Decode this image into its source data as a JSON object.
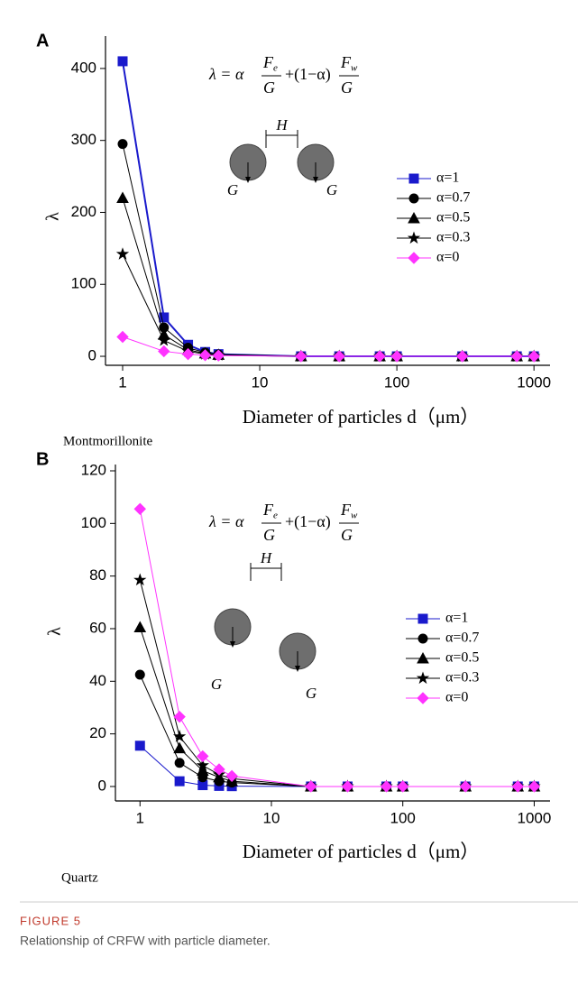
{
  "chart_data": [
    {
      "type": "line",
      "panel_label": "A",
      "xscale": "log",
      "formula": [
        "λ = α",
        "F",
        "e",
        "G",
        "+(1−α)",
        "F",
        "w",
        "G"
      ],
      "diagram_labels": [
        "H",
        "G",
        "G"
      ],
      "ylabel": "λ",
      "xlabel": "Diameter of particles d（μm）",
      "caption": "Montmorillonite",
      "x": [
        1,
        2,
        3,
        4,
        5,
        20,
        38,
        75,
        100,
        300,
        750,
        1000
      ],
      "xlim": [
        0.75,
        1310
      ],
      "xticks": [
        1,
        10,
        100,
        1000
      ],
      "ylim": [
        -12.5,
        445
      ],
      "yticks": [
        0,
        100,
        200,
        300,
        400
      ],
      "series": [
        {
          "name": "α=1",
          "color": "#1a1acc",
          "marker": "square",
          "values": [
            410,
            54,
            16,
            6,
            3,
            0,
            0,
            0,
            0,
            0,
            0,
            0
          ]
        },
        {
          "name": "α=0.7",
          "color": "#000000",
          "marker": "circle",
          "values": [
            295,
            40,
            12,
            5,
            2.5,
            0,
            0,
            0,
            0,
            0,
            0,
            0
          ]
        },
        {
          "name": "α=0.5",
          "color": "#000000",
          "marker": "triangle",
          "values": [
            220,
            30,
            9,
            4,
            2,
            0,
            0,
            0,
            0,
            0,
            0,
            0
          ]
        },
        {
          "name": "α=0.3",
          "color": "#000000",
          "marker": "star",
          "values": [
            142,
            22,
            7,
            3,
            1.5,
            0,
            0,
            0,
            0,
            0,
            0,
            0
          ]
        },
        {
          "name": "α=0",
          "color": "#ff33ff",
          "marker": "diamond",
          "values": [
            27,
            7,
            3,
            1.5,
            1,
            0,
            0,
            0,
            0,
            0,
            0,
            0
          ]
        }
      ]
    },
    {
      "type": "line",
      "panel_label": "B",
      "xscale": "log",
      "formula": [
        "λ = α",
        "F",
        "e",
        "G",
        "+(1−α)",
        "F",
        "w",
        "G"
      ],
      "diagram_labels": [
        "H",
        "G",
        "G"
      ],
      "ylabel": "λ",
      "xlabel": "Diameter of particles d（μm）",
      "caption": "Quartz",
      "x": [
        1,
        2,
        3,
        4,
        5,
        20,
        38,
        75,
        100,
        300,
        750,
        1000
      ],
      "xlim": [
        0.65,
        1320
      ],
      "xticks": [
        1,
        10,
        100,
        1000
      ],
      "ylim": [
        -5.5,
        122.4
      ],
      "yticks": [
        0,
        20,
        40,
        60,
        80,
        100,
        120
      ],
      "series": [
        {
          "name": "α=1",
          "color": "#1a1acc",
          "marker": "square",
          "values": [
            15.5,
            2,
            0.5,
            0.2,
            0.1,
            0,
            0,
            0,
            0,
            0,
            0,
            0
          ]
        },
        {
          "name": "α=0.7",
          "color": "#000000",
          "marker": "circle",
          "values": [
            42.5,
            9,
            3.5,
            2,
            1.5,
            0,
            0,
            0,
            0,
            0,
            0,
            0
          ]
        },
        {
          "name": "α=0.5",
          "color": "#000000",
          "marker": "triangle",
          "values": [
            60.5,
            14.5,
            6,
            3.5,
            2,
            0,
            0,
            0,
            0,
            0,
            0,
            0
          ]
        },
        {
          "name": "α=0.3",
          "color": "#000000",
          "marker": "star",
          "values": [
            78.5,
            19,
            8,
            4.5,
            3,
            0,
            0,
            0,
            0,
            0,
            0,
            0
          ]
        },
        {
          "name": "α=0",
          "color": "#ff33ff",
          "marker": "diamond",
          "values": [
            105.5,
            26.5,
            11.5,
            6.5,
            4,
            0,
            0,
            0,
            0,
            0,
            0,
            0
          ]
        }
      ]
    }
  ],
  "figure": {
    "label": "FIGURE 5",
    "caption": "Relationship of CRFW with particle diameter."
  }
}
